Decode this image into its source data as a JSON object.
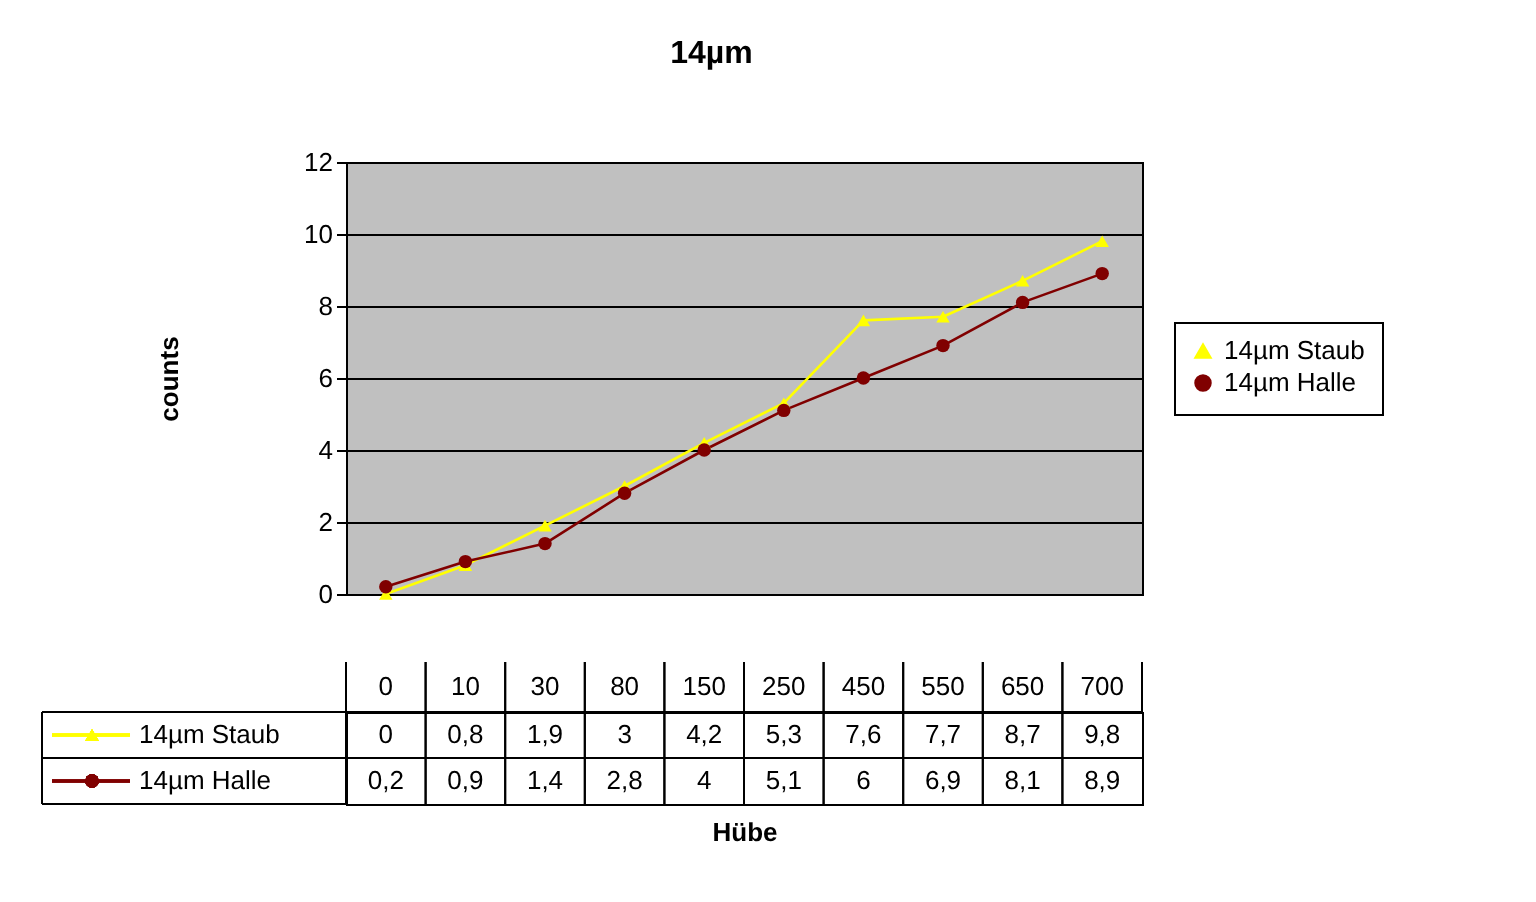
{
  "chart_data": {
    "type": "line",
    "title": "14µm",
    "xlabel": "Hübe",
    "ylabel": "counts",
    "categories": [
      "0",
      "10",
      "30",
      "80",
      "150",
      "250",
      "450",
      "550",
      "650",
      "700"
    ],
    "series": [
      {
        "name": "14µm Staub",
        "color": "#ffff00",
        "marker": "triangle",
        "values": [
          0,
          0.8,
          1.9,
          3,
          4.2,
          5.3,
          7.6,
          7.7,
          8.7,
          9.8
        ],
        "value_labels": [
          "0",
          "0,8",
          "1,9",
          "3",
          "4,2",
          "5,3",
          "7,6",
          "7,7",
          "8,7",
          "9,8"
        ]
      },
      {
        "name": "14µm Halle",
        "color": "#800000",
        "marker": "circle",
        "values": [
          0.2,
          0.9,
          1.4,
          2.8,
          4,
          5.1,
          6,
          6.9,
          8.1,
          8.9
        ],
        "value_labels": [
          "0,2",
          "0,9",
          "1,4",
          "2,8",
          "4",
          "5,1",
          "6",
          "6,9",
          "8,1",
          "8,9"
        ]
      }
    ],
    "ylim": [
      0,
      12
    ],
    "yticks": [
      0,
      2,
      4,
      6,
      8,
      10,
      12
    ],
    "grid": "y",
    "legend": "right"
  }
}
